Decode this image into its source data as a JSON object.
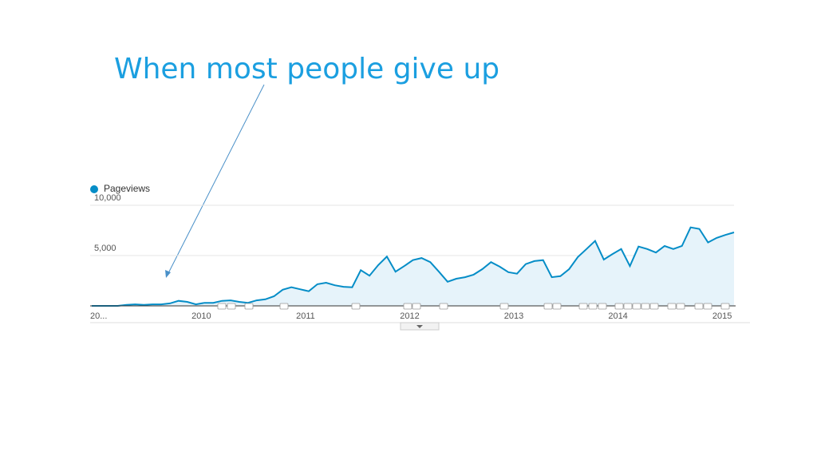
{
  "chart_data": {
    "type": "line",
    "annotation": "When most people give up",
    "categories": [
      "20...",
      null,
      null,
      null,
      null,
      null,
      null,
      null,
      null,
      null,
      null,
      null,
      null,
      "2010",
      null,
      null,
      null,
      null,
      null,
      null,
      null,
      null,
      null,
      null,
      null,
      "2011",
      null,
      null,
      null,
      null,
      null,
      null,
      null,
      null,
      null,
      null,
      null,
      "2012",
      null,
      null,
      null,
      null,
      null,
      null,
      null,
      null,
      null,
      null,
      null,
      "2013",
      null,
      null,
      null,
      null,
      null,
      null,
      null,
      null,
      null,
      null,
      null,
      "2014",
      null,
      null,
      null,
      null,
      null,
      null,
      null,
      null,
      null,
      null,
      null,
      "2015",
      null
    ],
    "series": [
      {
        "name": "Pageviews",
        "color": "#058dc7",
        "values": [
          0,
          0,
          0,
          0,
          100,
          150,
          100,
          150,
          150,
          250,
          500,
          400,
          150,
          300,
          300,
          500,
          550,
          400,
          300,
          550,
          650,
          950,
          1600,
          1850,
          1650,
          1450,
          2150,
          2300,
          2050,
          1900,
          1850,
          3550,
          3000,
          4050,
          4900,
          3400,
          3950,
          4550,
          4750,
          4350,
          3400,
          2400,
          2700,
          2850,
          3100,
          3650,
          4350,
          3900,
          3350,
          3200,
          4150,
          4450,
          4550,
          2850,
          2950,
          3650,
          4850,
          5650,
          6450,
          4600,
          5150,
          5650,
          3950,
          5900,
          5650,
          5300,
          5950,
          5650,
          5950,
          7800,
          7650,
          6300,
          6750,
          7050,
          7300
        ]
      }
    ],
    "ylim": [
      0,
      10000
    ],
    "yticks": [
      {
        "value": 5000,
        "label": "5,000"
      },
      {
        "value": 10000,
        "label": "10,000"
      }
    ],
    "grid": true,
    "legend": "top-left"
  }
}
